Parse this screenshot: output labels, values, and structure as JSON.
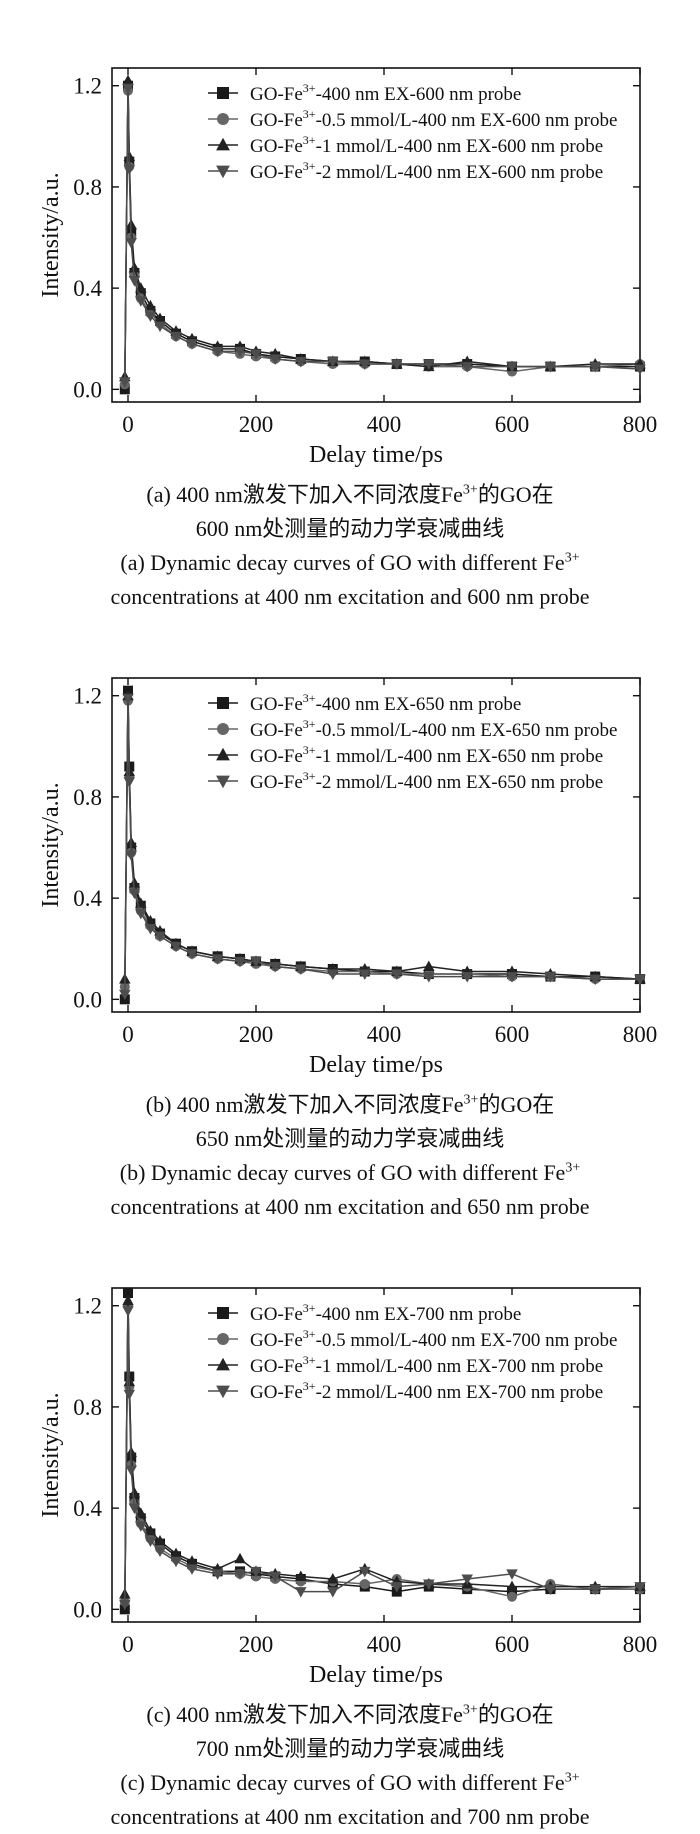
{
  "chart_data": [
    {
      "type": "line",
      "panel": "(a)",
      "xlabel": "Delay time/ps",
      "ylabel": "Intensity/a.u.",
      "xlim": [
        -25,
        800
      ],
      "ylim": [
        -0.05,
        1.27
      ],
      "xticks": [
        "0",
        "200",
        "400",
        "600",
        "800"
      ],
      "yticks": [
        "0.0",
        "0.4",
        "0.8",
        "1.2"
      ],
      "xtick_values": [
        0,
        200,
        400,
        600,
        800
      ],
      "ytick_values": [
        0.0,
        0.4,
        0.8,
        1.2
      ],
      "legend_position": "top-right",
      "series": [
        {
          "name": "GO-Fe3+-400 nm EX-600 nm probe",
          "legend": {
            "pre": "GO-Fe",
            "sup": "3+",
            "post": "-400 nm EX-600 nm probe"
          },
          "marker": "square",
          "color": "#1a1a1a",
          "x": [
            -5,
            0,
            2,
            5,
            10,
            20,
            35,
            50,
            75,
            100,
            140,
            175,
            200,
            230,
            270,
            320,
            370,
            420,
            470,
            530,
            600,
            660,
            730,
            800
          ],
          "y": [
            0.0,
            1.2,
            0.9,
            0.62,
            0.46,
            0.38,
            0.31,
            0.27,
            0.22,
            0.19,
            0.16,
            0.16,
            0.14,
            0.13,
            0.12,
            0.11,
            0.11,
            0.1,
            0.1,
            0.1,
            0.09,
            0.09,
            0.09,
            0.09
          ]
        },
        {
          "name": "GO-Fe3+-0.5 mmol/L-400 nm EX-600 nm probe",
          "legend": {
            "pre": "GO-Fe",
            "sup": "3+",
            "post": "-0.5 mmol/L-400 nm EX-600 nm probe"
          },
          "marker": "circle",
          "color": "#666666",
          "x": [
            -5,
            0,
            2,
            5,
            10,
            20,
            35,
            50,
            75,
            100,
            140,
            175,
            200,
            230,
            270,
            320,
            370,
            420,
            470,
            530,
            600,
            660,
            730,
            800
          ],
          "y": [
            0.02,
            1.18,
            0.88,
            0.6,
            0.45,
            0.36,
            0.3,
            0.26,
            0.21,
            0.18,
            0.15,
            0.14,
            0.13,
            0.12,
            0.11,
            0.1,
            0.1,
            0.1,
            0.09,
            0.09,
            0.07,
            0.09,
            0.09,
            0.1
          ]
        },
        {
          "name": "GO-Fe3+-1 mmol/L-400 nm EX-600 nm probe",
          "legend": {
            "pre": "GO-Fe",
            "sup": "3+",
            "post": "-1 mmol/L-400 nm EX-600 nm probe"
          },
          "marker": "triangle-up",
          "color": "#222222",
          "x": [
            -5,
            0,
            2,
            5,
            10,
            20,
            35,
            50,
            75,
            100,
            140,
            175,
            200,
            230,
            270,
            320,
            370,
            420,
            470,
            530,
            600,
            660,
            730,
            800
          ],
          "y": [
            0.05,
            1.22,
            0.92,
            0.65,
            0.48,
            0.4,
            0.33,
            0.28,
            0.23,
            0.2,
            0.17,
            0.17,
            0.15,
            0.14,
            0.12,
            0.11,
            0.11,
            0.1,
            0.09,
            0.11,
            0.09,
            0.09,
            0.1,
            0.1
          ]
        },
        {
          "name": "GO-Fe3+-2 mmol/L-400 nm EX-600 nm probe",
          "legend": {
            "pre": "GO-Fe",
            "sup": "3+",
            "post": "-2 mmol/L-400 nm EX-600 nm probe"
          },
          "marker": "triangle-down",
          "color": "#4d4d4d",
          "x": [
            -5,
            0,
            2,
            5,
            10,
            20,
            35,
            50,
            75,
            100,
            140,
            175,
            200,
            230,
            270,
            320,
            370,
            420,
            470,
            530,
            600,
            660,
            730,
            800
          ],
          "y": [
            0.03,
            1.19,
            0.87,
            0.58,
            0.43,
            0.35,
            0.29,
            0.25,
            0.21,
            0.18,
            0.15,
            0.15,
            0.14,
            0.12,
            0.11,
            0.11,
            0.1,
            0.1,
            0.1,
            0.09,
            0.09,
            0.09,
            0.09,
            0.08
          ]
        }
      ],
      "caption_zh": {
        "line1_pre": "(a) 400 nm激发下加入不同浓度Fe",
        "line1_sup": "3+",
        "line1_post": "的GO在",
        "line2": "600 nm处测量的动力学衰减曲线"
      },
      "caption_en": {
        "line1_pre": "(a) Dynamic decay curves of GO with different Fe",
        "line1_sup": "3+",
        "line2": "concentrations at 400 nm excitation and 600 nm probe"
      }
    },
    {
      "type": "line",
      "panel": "(b)",
      "xlabel": "Delay time/ps",
      "ylabel": "Intensity/a.u.",
      "xlim": [
        -25,
        800
      ],
      "ylim": [
        -0.05,
        1.27
      ],
      "xticks": [
        "0",
        "200",
        "400",
        "600",
        "800"
      ],
      "yticks": [
        "0.0",
        "0.4",
        "0.8",
        "1.2"
      ],
      "xtick_values": [
        0,
        200,
        400,
        600,
        800
      ],
      "ytick_values": [
        0.0,
        0.4,
        0.8,
        1.2
      ],
      "legend_position": "top-right",
      "series": [
        {
          "name": "GO-Fe3+-400 nm EX-650 nm probe",
          "legend": {
            "pre": "GO-Fe",
            "sup": "3+",
            "post": "-400 nm EX-650 nm probe"
          },
          "marker": "square",
          "color": "#1a1a1a",
          "x": [
            -5,
            0,
            2,
            5,
            10,
            20,
            35,
            50,
            75,
            100,
            140,
            175,
            200,
            230,
            270,
            320,
            370,
            420,
            470,
            530,
            600,
            660,
            730,
            800
          ],
          "y": [
            0.0,
            1.22,
            0.92,
            0.6,
            0.44,
            0.37,
            0.3,
            0.26,
            0.22,
            0.19,
            0.17,
            0.16,
            0.15,
            0.14,
            0.13,
            0.12,
            0.11,
            0.11,
            0.1,
            0.1,
            0.1,
            0.09,
            0.09,
            0.08
          ]
        },
        {
          "name": "GO-Fe3+-0.5 mmol/L-400 nm EX-650 nm probe",
          "legend": {
            "pre": "GO-Fe",
            "sup": "3+",
            "post": "-0.5 mmol/L-400 nm EX-650 nm probe"
          },
          "marker": "circle",
          "color": "#666666",
          "x": [
            -5,
            0,
            2,
            5,
            10,
            20,
            35,
            50,
            75,
            100,
            140,
            175,
            200,
            230,
            270,
            320,
            370,
            420,
            470,
            530,
            600,
            660,
            730,
            800
          ],
          "y": [
            0.05,
            1.18,
            0.88,
            0.58,
            0.43,
            0.35,
            0.29,
            0.25,
            0.21,
            0.18,
            0.16,
            0.15,
            0.14,
            0.13,
            0.12,
            0.11,
            0.11,
            0.1,
            0.1,
            0.1,
            0.09,
            0.09,
            0.08,
            0.08
          ]
        },
        {
          "name": "GO-Fe3+-1 mmol/L-400 nm EX-650 nm probe",
          "legend": {
            "pre": "GO-Fe",
            "sup": "3+",
            "post": "-1 mmol/L-400 nm EX-650 nm probe"
          },
          "marker": "triangle-up",
          "color": "#222222",
          "x": [
            -5,
            0,
            2,
            5,
            10,
            20,
            35,
            50,
            75,
            100,
            140,
            175,
            200,
            230,
            270,
            320,
            370,
            420,
            470,
            530,
            600,
            660,
            730,
            800
          ],
          "y": [
            0.08,
            1.2,
            0.9,
            0.62,
            0.46,
            0.38,
            0.31,
            0.27,
            0.22,
            0.19,
            0.17,
            0.16,
            0.15,
            0.14,
            0.13,
            0.12,
            0.12,
            0.11,
            0.13,
            0.11,
            0.11,
            0.1,
            0.09,
            0.08
          ]
        },
        {
          "name": "GO-Fe3+-2 mmol/L-400 nm EX-650 nm probe",
          "legend": {
            "pre": "GO-Fe",
            "sup": "3+",
            "post": "-2 mmol/L-400 nm EX-650 nm probe"
          },
          "marker": "triangle-down",
          "color": "#4d4d4d",
          "x": [
            -5,
            0,
            2,
            5,
            10,
            20,
            35,
            50,
            75,
            100,
            140,
            175,
            200,
            230,
            270,
            320,
            370,
            420,
            470,
            530,
            600,
            660,
            730,
            800
          ],
          "y": [
            0.02,
            1.19,
            0.86,
            0.57,
            0.42,
            0.34,
            0.28,
            0.25,
            0.21,
            0.18,
            0.16,
            0.15,
            0.15,
            0.13,
            0.12,
            0.1,
            0.1,
            0.1,
            0.09,
            0.09,
            0.09,
            0.09,
            0.08,
            0.08
          ]
        }
      ],
      "caption_zh": {
        "line1_pre": "(b) 400 nm激发下加入不同浓度Fe",
        "line1_sup": "3+",
        "line1_post": "的GO在",
        "line2": "650 nm处测量的动力学衰减曲线"
      },
      "caption_en": {
        "line1_pre": "(b) Dynamic decay curves of GO with different Fe",
        "line1_sup": "3+",
        "line2": "concentrations at 400 nm excitation and 650 nm probe"
      }
    },
    {
      "type": "line",
      "panel": "(c)",
      "xlabel": "Delay time/ps",
      "ylabel": "Intensity/a.u.",
      "xlim": [
        -25,
        800
      ],
      "ylim": [
        -0.05,
        1.27
      ],
      "xticks": [
        "0",
        "200",
        "400",
        "600",
        "800"
      ],
      "yticks": [
        "0.0",
        "0.4",
        "0.8",
        "1.2"
      ],
      "xtick_values": [
        0,
        200,
        400,
        600,
        800
      ],
      "ytick_values": [
        0.0,
        0.4,
        0.8,
        1.2
      ],
      "legend_position": "top-right",
      "series": [
        {
          "name": "GO-Fe3+-400 nm EX-700 nm probe",
          "legend": {
            "pre": "GO-Fe",
            "sup": "3+",
            "post": "-400 nm EX-700 nm probe"
          },
          "marker": "square",
          "color": "#1a1a1a",
          "x": [
            -5,
            0,
            2,
            5,
            10,
            20,
            35,
            50,
            75,
            100,
            140,
            175,
            200,
            230,
            270,
            320,
            370,
            420,
            470,
            530,
            600,
            660,
            730,
            800
          ],
          "y": [
            0.0,
            1.25,
            0.92,
            0.6,
            0.44,
            0.36,
            0.3,
            0.26,
            0.21,
            0.18,
            0.15,
            0.15,
            0.14,
            0.13,
            0.12,
            0.1,
            0.09,
            0.07,
            0.09,
            0.08,
            0.07,
            0.08,
            0.08,
            0.08
          ]
        },
        {
          "name": "GO-Fe3+-0.5 mmol/L-400 nm EX-700 nm probe",
          "legend": {
            "pre": "GO-Fe",
            "sup": "3+",
            "post": "-0.5 mmol/L-400 nm EX-700 nm probe"
          },
          "marker": "circle",
          "color": "#666666",
          "x": [
            -5,
            0,
            2,
            5,
            10,
            20,
            35,
            50,
            75,
            100,
            140,
            175,
            200,
            230,
            270,
            320,
            370,
            420,
            470,
            530,
            600,
            660,
            730,
            800
          ],
          "y": [
            0.03,
            1.2,
            0.88,
            0.57,
            0.42,
            0.34,
            0.28,
            0.24,
            0.2,
            0.17,
            0.15,
            0.14,
            0.13,
            0.12,
            0.11,
            0.11,
            0.1,
            0.12,
            0.1,
            0.09,
            0.05,
            0.1,
            0.08,
            0.08
          ]
        },
        {
          "name": "GO-Fe3+-1 mmol/L-400 nm EX-700 nm probe",
          "legend": {
            "pre": "GO-Fe",
            "sup": "3+",
            "post": "-1 mmol/L-400 nm EX-700 nm probe"
          },
          "marker": "triangle-up",
          "color": "#222222",
          "x": [
            -5,
            0,
            2,
            5,
            10,
            20,
            35,
            50,
            75,
            100,
            140,
            175,
            200,
            230,
            270,
            320,
            370,
            420,
            470,
            530,
            600,
            660,
            730,
            800
          ],
          "y": [
            0.06,
            1.22,
            0.9,
            0.62,
            0.46,
            0.38,
            0.31,
            0.27,
            0.22,
            0.19,
            0.16,
            0.2,
            0.15,
            0.14,
            0.13,
            0.12,
            0.16,
            0.11,
            0.1,
            0.1,
            0.09,
            0.09,
            0.09,
            0.09
          ]
        },
        {
          "name": "GO-Fe3+-2 mmol/L-400 nm EX-700 nm probe",
          "legend": {
            "pre": "GO-Fe",
            "sup": "3+",
            "post": "-2 mmol/L-400 nm EX-700 nm probe"
          },
          "marker": "triangle-down",
          "color": "#4d4d4d",
          "x": [
            -5,
            0,
            2,
            5,
            10,
            20,
            35,
            50,
            75,
            100,
            140,
            175,
            200,
            230,
            270,
            320,
            370,
            420,
            470,
            530,
            600,
            660,
            730,
            800
          ],
          "y": [
            0.02,
            1.18,
            0.85,
            0.55,
            0.4,
            0.33,
            0.27,
            0.23,
            0.19,
            0.16,
            0.14,
            0.14,
            0.15,
            0.13,
            0.07,
            0.07,
            0.15,
            0.09,
            0.1,
            0.12,
            0.14,
            0.08,
            0.08,
            0.09
          ]
        }
      ],
      "caption_zh": {
        "line1_pre": "(c) 400 nm激发下加入不同浓度Fe",
        "line1_sup": "3+",
        "line1_post": "的GO在",
        "line2": "700 nm处测量的动力学衰减曲线"
      },
      "caption_en": {
        "line1_pre": "(c) Dynamic decay curves of GO with different Fe",
        "line1_sup": "3+",
        "line2": "concentrations at 400 nm excitation and 700 nm probe"
      }
    }
  ]
}
